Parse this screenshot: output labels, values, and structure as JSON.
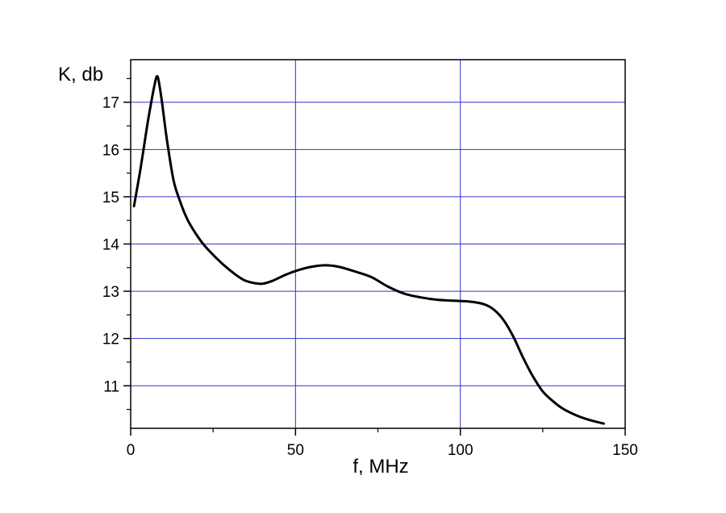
{
  "chart_data": {
    "type": "line",
    "xlabel": "f, MHz",
    "ylabel": "K, db",
    "xlim": [
      0,
      150
    ],
    "ylim": [
      10.1,
      17.9
    ],
    "x_ticks": [
      0,
      50,
      100,
      150
    ],
    "x_tick_labels": [
      "0",
      "50",
      "100",
      "150"
    ],
    "y_ticks": [
      11,
      12,
      13,
      14,
      15,
      16,
      17
    ],
    "y_tick_labels": [
      "11",
      "12",
      "13",
      "14",
      "15",
      "16",
      "17"
    ],
    "grid": true,
    "colors": {
      "grid": "#3333cc",
      "line": "#000000",
      "axis": "#000000"
    },
    "series": [
      {
        "x": [
          1,
          3,
          5,
          6.5,
          7.5,
          8,
          8.5,
          9.5,
          11,
          13,
          15,
          17,
          19,
          22,
          26,
          30,
          34,
          37,
          40,
          43,
          47,
          51,
          55,
          59,
          63,
          68,
          73,
          78,
          83,
          88,
          93,
          98,
          103,
          107,
          110,
          113,
          116,
          119,
          122,
          125,
          128,
          131,
          135,
          139,
          143.5
        ],
        "y": [
          14.8,
          15.6,
          16.5,
          17.1,
          17.45,
          17.55,
          17.45,
          17.0,
          16.2,
          15.35,
          14.9,
          14.55,
          14.3,
          14.0,
          13.7,
          13.45,
          13.25,
          13.18,
          13.16,
          13.22,
          13.35,
          13.45,
          13.52,
          13.55,
          13.52,
          13.42,
          13.3,
          13.1,
          12.95,
          12.87,
          12.82,
          12.8,
          12.78,
          12.73,
          12.62,
          12.4,
          12.05,
          11.6,
          11.2,
          10.88,
          10.68,
          10.52,
          10.38,
          10.28,
          10.2
        ]
      }
    ]
  }
}
